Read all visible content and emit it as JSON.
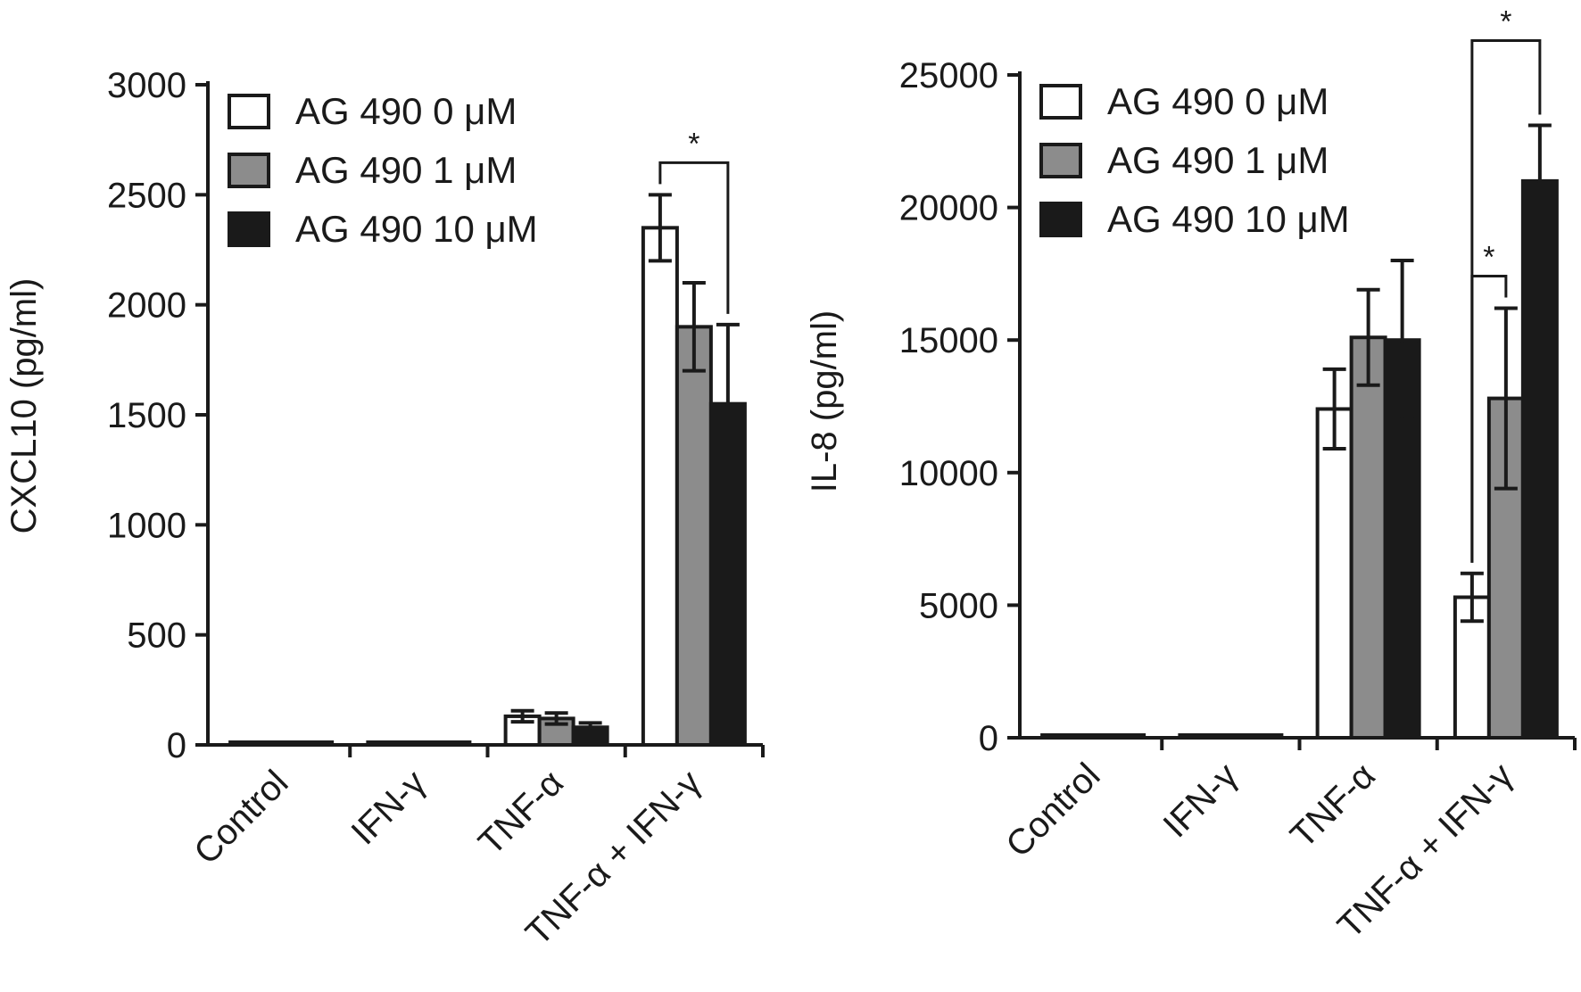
{
  "chart_data": [
    {
      "type": "bar",
      "title": "",
      "xlabel": "",
      "ylabel": "CXCL10 (pg/ml)",
      "ylim": [
        0,
        3000
      ],
      "yticks": [
        0,
        500,
        1000,
        1500,
        2000,
        2500,
        3000
      ],
      "categories": [
        "Control",
        "IFN-γ",
        "TNF-α",
        "TNF-α + IFN-γ"
      ],
      "legend": "top-left",
      "series": [
        {
          "name": "AG 490 0 μM",
          "color": "#ffffff",
          "values": [
            10,
            10,
            130,
            2350
          ],
          "errors": [
            5,
            5,
            25,
            150
          ]
        },
        {
          "name": "AG 490 1 μM",
          "color": "#8c8c8c",
          "values": [
            10,
            10,
            120,
            1900
          ],
          "errors": [
            5,
            5,
            25,
            200
          ]
        },
        {
          "name": "AG 490 10 μM",
          "color": "#1a1a1a",
          "values": [
            10,
            10,
            80,
            1550
          ],
          "errors": [
            5,
            5,
            20,
            360
          ]
        }
      ],
      "annotations": [
        {
          "label": "*",
          "category": 3,
          "from_series": 0,
          "to_series": 2
        }
      ]
    },
    {
      "type": "bar",
      "title": "",
      "xlabel": "",
      "ylabel": "IL-8 (pg/ml)",
      "ylim": [
        0,
        25000
      ],
      "yticks": [
        0,
        5000,
        10000,
        15000,
        20000,
        25000
      ],
      "categories": [
        "Control",
        "IFN-γ",
        "TNF-α",
        "TNF-α + IFN-γ"
      ],
      "legend": "top-left",
      "series": [
        {
          "name": "AG 490 0 μM",
          "color": "#ffffff",
          "values": [
            20,
            30,
            12400,
            5300
          ],
          "errors": [
            10,
            10,
            1500,
            900
          ]
        },
        {
          "name": "AG 490 1 μM",
          "color": "#8c8c8c",
          "values": [
            20,
            30,
            15100,
            12800
          ],
          "errors": [
            10,
            10,
            1800,
            3400
          ]
        },
        {
          "name": "AG 490 10 μM",
          "color": "#1a1a1a",
          "values": [
            20,
            30,
            15000,
            21000
          ],
          "errors": [
            10,
            10,
            3000,
            2100
          ]
        }
      ],
      "annotations": [
        {
          "label": "*",
          "category": 3,
          "from_series": 0,
          "to_series": 1
        },
        {
          "label": "*",
          "category": 3,
          "from_series": 0,
          "to_series": 2
        }
      ]
    }
  ]
}
